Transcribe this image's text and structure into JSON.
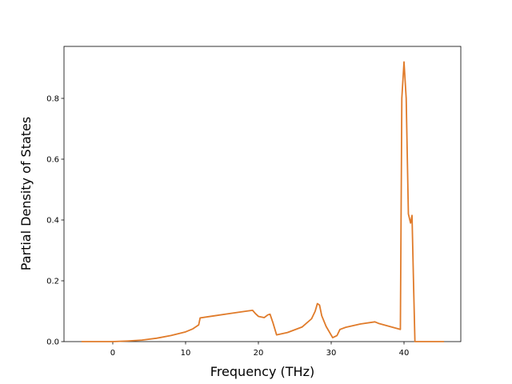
{
  "chart_data": {
    "type": "line",
    "xlabel": "Frequency (THz)",
    "ylabel": "Partial Density of States",
    "x": [
      -4.3,
      0,
      2,
      4,
      6,
      8,
      10,
      11,
      11.8,
      12,
      14,
      16,
      18,
      19.2,
      19.6,
      20,
      20.8,
      21.3,
      21.6,
      22,
      22.5,
      24,
      26,
      27.3,
      27.8,
      28.1,
      28.4,
      28.7,
      29.3,
      30.2,
      30.8,
      31.2,
      32,
      34,
      36,
      36.5,
      38,
      39.5,
      39.7,
      40,
      40.3,
      40.6,
      40.9,
      41.1,
      41.3,
      41.5,
      45.5
    ],
    "values": [
      0,
      0,
      0.002,
      0.005,
      0.011,
      0.02,
      0.032,
      0.042,
      0.055,
      0.078,
      0.085,
      0.092,
      0.099,
      0.103,
      0.092,
      0.083,
      0.079,
      0.088,
      0.09,
      0.062,
      0.022,
      0.03,
      0.048,
      0.075,
      0.1,
      0.125,
      0.12,
      0.085,
      0.05,
      0.013,
      0.02,
      0.04,
      0.047,
      0.058,
      0.065,
      0.06,
      0.05,
      0.04,
      0.8,
      0.92,
      0.8,
      0.42,
      0.39,
      0.415,
      0.2,
      0,
      0
    ],
    "color": "#e07b2a",
    "xlim": [
      -6.7,
      47.8
    ],
    "xticks": [
      0,
      10,
      20,
      30,
      40
    ],
    "ylim": [
      0,
      0.971
    ],
    "yticks": [
      {
        "value": 0,
        "label": "0.0"
      },
      0.2,
      0.4,
      0.6,
      0.8
    ]
  }
}
